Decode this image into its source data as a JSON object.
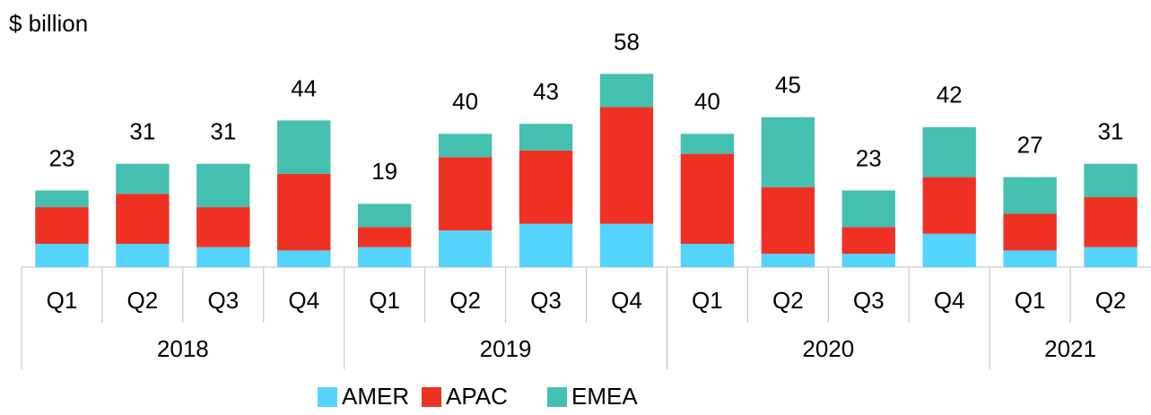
{
  "chart_data": {
    "type": "stacked_bar",
    "y_label": "$ billion",
    "groups": [
      {
        "name": "2018",
        "categories": [
          "Q1",
          "Q2",
          "Q3",
          "Q4"
        ]
      },
      {
        "name": "2019",
        "categories": [
          "Q1",
          "Q2",
          "Q3",
          "Q4"
        ]
      },
      {
        "name": "2020",
        "categories": [
          "Q1",
          "Q2",
          "Q3",
          "Q4"
        ]
      },
      {
        "name": "2021",
        "categories": [
          "Q1",
          "Q2"
        ]
      }
    ],
    "series": [
      {
        "name": "AMER",
        "color": "#55d4fb",
        "values": [
          7,
          7,
          6,
          5,
          6,
          11,
          13,
          13,
          7,
          4,
          4,
          10,
          5,
          6
        ]
      },
      {
        "name": "APAC",
        "color": "#ef3124",
        "values": [
          11,
          15,
          12,
          23,
          6,
          22,
          22,
          35,
          27,
          20,
          8,
          17,
          11,
          15
        ]
      },
      {
        "name": "EMEA",
        "color": "#45bfae",
        "values": [
          5,
          9,
          13,
          16,
          7,
          7,
          8,
          10,
          6,
          21,
          11,
          15,
          11,
          10
        ]
      }
    ],
    "totals": [
      23,
      31,
      31,
      44,
      19,
      40,
      43,
      58,
      40,
      45,
      23,
      42,
      27,
      31
    ],
    "ylim": [
      0,
      69.4
    ]
  }
}
